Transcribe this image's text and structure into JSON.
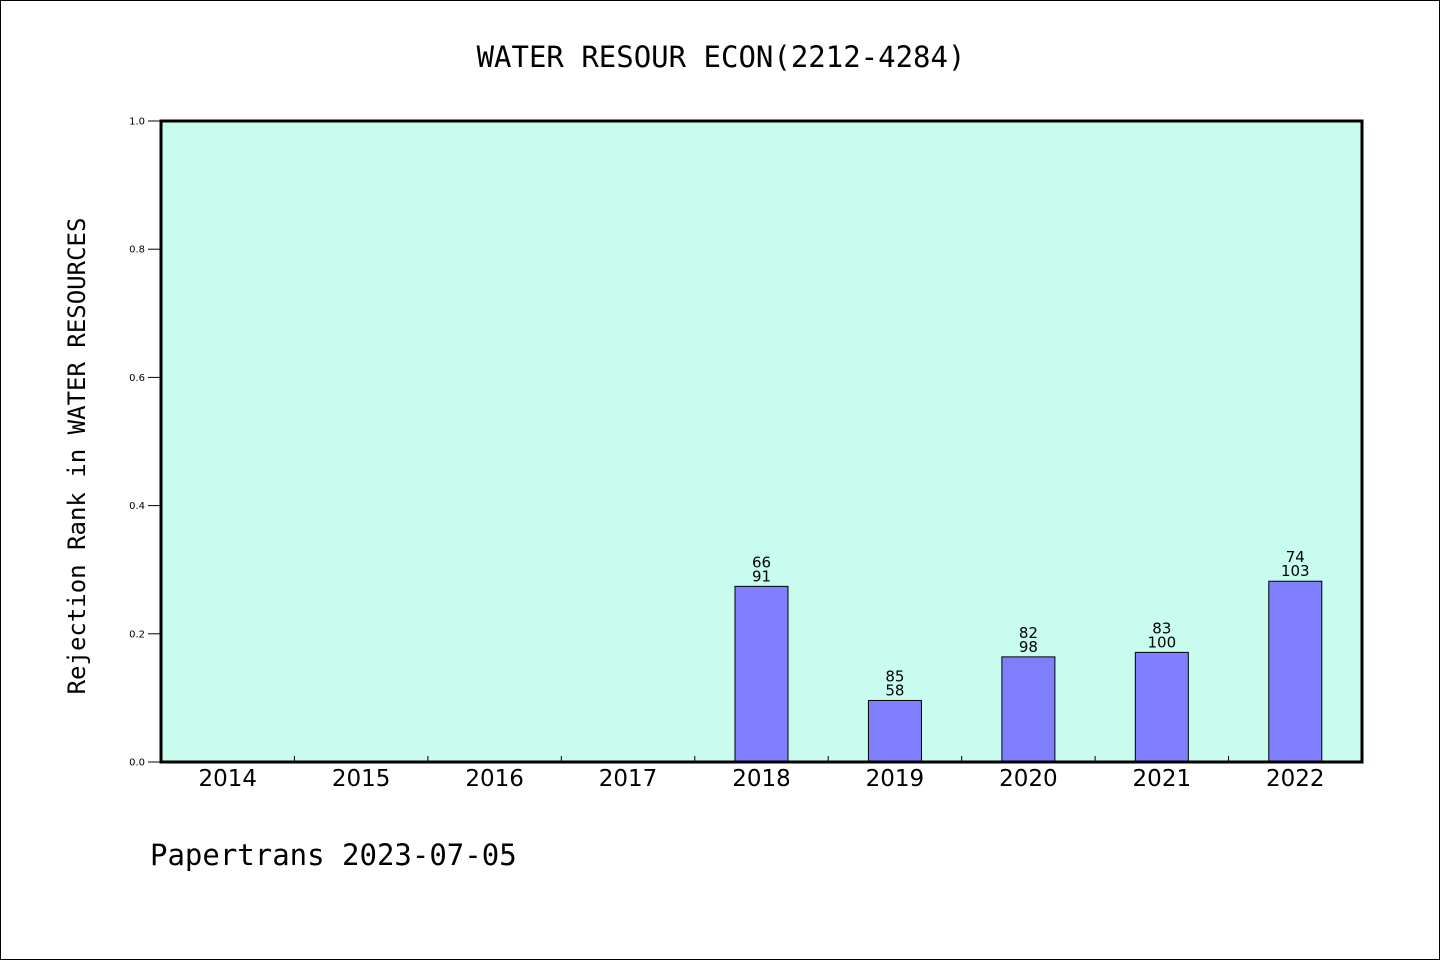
{
  "chart_data": {
    "type": "bar",
    "title": "WATER RESOUR ECON(2212-4284)",
    "xlabel": "",
    "ylabel": "Rejection Rank in WATER RESOURCES",
    "ylim": [
      0,
      1.0
    ],
    "yticks": [
      "0.0",
      "0.2",
      "0.4",
      "0.6",
      "0.8",
      "1.0"
    ],
    "categories": [
      "2014",
      "2015",
      "2016",
      "2017",
      "2018",
      "2019",
      "2020",
      "2021",
      "2022"
    ],
    "values": [
      null,
      null,
      null,
      null,
      0.274,
      0.096,
      0.164,
      0.171,
      0.282
    ],
    "labels_top": [
      "",
      "",
      "",
      "",
      "66",
      "85",
      "82",
      "83",
      "74"
    ],
    "labels_bottom": [
      "",
      "",
      "",
      "",
      "91",
      "58",
      "98",
      "100",
      "103"
    ],
    "grid": false,
    "legend": "none",
    "colors": {
      "plot_background": "#c8fcee",
      "bar_fill": "#8080ff",
      "bar_stroke": "#000000",
      "axis": "#000000"
    }
  },
  "footer": {
    "text": "Papertrans 2023-07-05"
  }
}
